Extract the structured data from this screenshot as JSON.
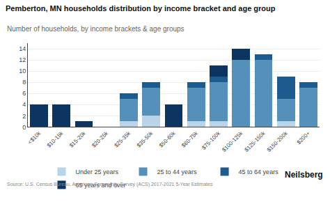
{
  "chart_data": {
    "type": "bar",
    "stacked": true,
    "title": "Pemberton, MN households distribution by income bracket and age group",
    "subtitle": "Number of households, by income brackets & age groups",
    "annotations": [
      "Source: U.S. Census Bureau, American Community Survey (ACS) 2017-2021 5-Year Estimates",
      "Neilsberg"
    ],
    "categories": [
      "<$10k",
      "$10-15k",
      "$15-20k",
      "$20-25k",
      "$25-35k",
      "$35-50k",
      "$50-60k",
      "$60-75k",
      "$75-100k",
      "$100-125k",
      "$125-150k",
      "$150-200k",
      "$200+"
    ],
    "series": [
      {
        "name": "Under 25 years",
        "color": "#b8d4e8",
        "values": [
          0,
          0,
          0,
          0,
          1,
          2,
          0,
          1,
          1,
          0,
          0,
          1,
          0
        ]
      },
      {
        "name": "25 to 44 years",
        "color": "#5590bb",
        "values": [
          0,
          0,
          0,
          0,
          4,
          5,
          0,
          6,
          7,
          12,
          12,
          4,
          7
        ]
      },
      {
        "name": "45 to 64 years",
        "color": "#1d5a8e",
        "values": [
          0,
          0,
          0,
          0,
          1,
          1,
          0,
          1,
          1,
          0,
          1,
          4,
          1
        ]
      },
      {
        "name": "65 years and over",
        "color": "#0c3460",
        "values": [
          4,
          4,
          1,
          0,
          0,
          0,
          4,
          0,
          2,
          2,
          0,
          0,
          0
        ]
      }
    ],
    "ylim": [
      0,
      15
    ],
    "yticks": [
      0,
      2,
      4,
      6,
      8,
      10,
      12,
      14
    ],
    "grid": true,
    "legend": "bottom"
  }
}
